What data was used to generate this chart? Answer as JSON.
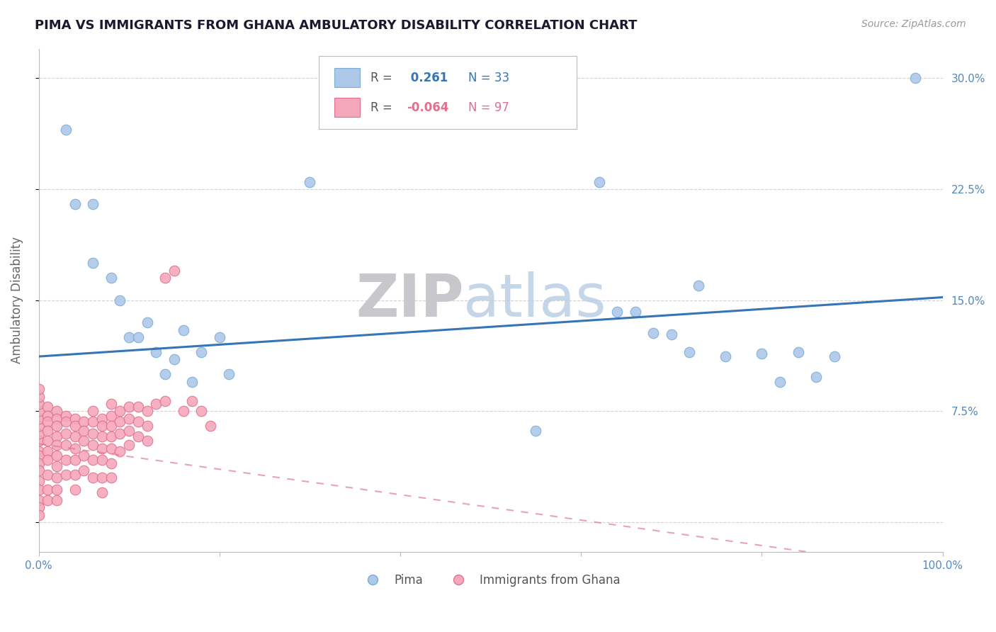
{
  "title": "PIMA VS IMMIGRANTS FROM GHANA AMBULATORY DISABILITY CORRELATION CHART",
  "source": "Source: ZipAtlas.com",
  "ylabel": "Ambulatory Disability",
  "yticks": [
    0.0,
    0.075,
    0.15,
    0.225,
    0.3
  ],
  "ytick_labels": [
    "",
    "7.5%",
    "15.0%",
    "22.5%",
    "30.0%"
  ],
  "xlim": [
    0.0,
    1.0
  ],
  "ylim": [
    -0.02,
    0.32
  ],
  "pima_color": "#adc8e8",
  "ghana_color": "#f5a8bc",
  "pima_edge_color": "#7aadd4",
  "ghana_edge_color": "#e07090",
  "trend_pima_color": "#3575b8",
  "trend_ghana_color": "#e07090",
  "legend_pima_r": "0.261",
  "legend_pima_n": "33",
  "legend_ghana_r": "-0.064",
  "legend_ghana_n": "97",
  "pima_trend_x0": 0.0,
  "pima_trend_y0": 0.112,
  "pima_trend_x1": 1.0,
  "pima_trend_y1": 0.152,
  "ghana_trend_x0": 0.0,
  "ghana_trend_y0": 0.053,
  "ghana_trend_x1": 0.85,
  "ghana_trend_y1": -0.02,
  "pima_x": [
    0.03,
    0.04,
    0.06,
    0.06,
    0.08,
    0.09,
    0.1,
    0.11,
    0.12,
    0.13,
    0.14,
    0.15,
    0.16,
    0.17,
    0.18,
    0.2,
    0.21,
    0.3,
    0.55,
    0.62,
    0.64,
    0.66,
    0.68,
    0.7,
    0.72,
    0.73,
    0.76,
    0.8,
    0.82,
    0.84,
    0.86,
    0.88,
    0.97
  ],
  "pima_y": [
    0.265,
    0.215,
    0.215,
    0.175,
    0.165,
    0.15,
    0.125,
    0.125,
    0.135,
    0.115,
    0.1,
    0.11,
    0.13,
    0.095,
    0.115,
    0.125,
    0.1,
    0.23,
    0.062,
    0.23,
    0.142,
    0.142,
    0.128,
    0.127,
    0.115,
    0.16,
    0.112,
    0.114,
    0.095,
    0.115,
    0.098,
    0.112,
    0.3
  ],
  "ghana_x": [
    0.0,
    0.0,
    0.0,
    0.0,
    0.0,
    0.0,
    0.0,
    0.0,
    0.0,
    0.0,
    0.0,
    0.0,
    0.0,
    0.0,
    0.0,
    0.0,
    0.0,
    0.01,
    0.01,
    0.01,
    0.01,
    0.01,
    0.01,
    0.01,
    0.01,
    0.01,
    0.01,
    0.02,
    0.02,
    0.02,
    0.02,
    0.02,
    0.02,
    0.02,
    0.02,
    0.02,
    0.02,
    0.03,
    0.03,
    0.03,
    0.03,
    0.03,
    0.03,
    0.04,
    0.04,
    0.04,
    0.04,
    0.04,
    0.04,
    0.04,
    0.05,
    0.05,
    0.05,
    0.05,
    0.05,
    0.06,
    0.06,
    0.06,
    0.06,
    0.06,
    0.06,
    0.07,
    0.07,
    0.07,
    0.07,
    0.07,
    0.07,
    0.07,
    0.08,
    0.08,
    0.08,
    0.08,
    0.08,
    0.08,
    0.08,
    0.09,
    0.09,
    0.09,
    0.09,
    0.1,
    0.1,
    0.1,
    0.1,
    0.11,
    0.11,
    0.11,
    0.12,
    0.12,
    0.12,
    0.13,
    0.14,
    0.14,
    0.15,
    0.16,
    0.17,
    0.18,
    0.19
  ],
  "ghana_y": [
    0.055,
    0.06,
    0.065,
    0.07,
    0.075,
    0.08,
    0.085,
    0.09,
    0.048,
    0.045,
    0.04,
    0.035,
    0.028,
    0.022,
    0.015,
    0.01,
    0.005,
    0.078,
    0.072,
    0.068,
    0.062,
    0.055,
    0.048,
    0.042,
    0.032,
    0.022,
    0.015,
    0.075,
    0.07,
    0.065,
    0.058,
    0.052,
    0.045,
    0.038,
    0.03,
    0.022,
    0.015,
    0.072,
    0.068,
    0.06,
    0.052,
    0.042,
    0.032,
    0.07,
    0.065,
    0.058,
    0.05,
    0.042,
    0.032,
    0.022,
    0.068,
    0.062,
    0.055,
    0.045,
    0.035,
    0.075,
    0.068,
    0.06,
    0.052,
    0.042,
    0.03,
    0.07,
    0.065,
    0.058,
    0.05,
    0.042,
    0.03,
    0.02,
    0.08,
    0.072,
    0.065,
    0.058,
    0.05,
    0.04,
    0.03,
    0.075,
    0.068,
    0.06,
    0.048,
    0.078,
    0.07,
    0.062,
    0.052,
    0.078,
    0.068,
    0.058,
    0.075,
    0.065,
    0.055,
    0.08,
    0.165,
    0.082,
    0.17,
    0.075,
    0.082,
    0.075,
    0.065
  ],
  "watermark_zip": "ZIP",
  "watermark_atlas": "atlas",
  "background_color": "#ffffff",
  "grid_color": "#cccccc",
  "title_color": "#1a1a2e",
  "axis_label_color": "#5588bb",
  "right_axis_color": "#5588bb"
}
